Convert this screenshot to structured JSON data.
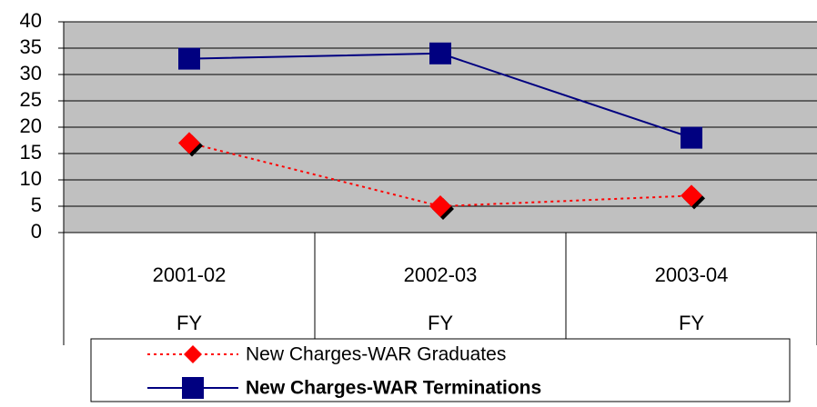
{
  "chart_data": {
    "type": "line",
    "categories": [
      [
        "2001-02",
        "FY"
      ],
      [
        "2002-03",
        "FY"
      ],
      [
        "2003-04",
        "FY"
      ]
    ],
    "series": [
      {
        "name": "New Charges-WAR Graduates",
        "color": "#ff0000",
        "values": [
          17,
          5,
          7
        ]
      },
      {
        "name": "New Charges-WAR Terminations",
        "color": "#000080",
        "values": [
          33,
          34,
          18
        ]
      }
    ],
    "ylim": [
      0,
      40
    ],
    "yticks": [
      0,
      5,
      10,
      15,
      20,
      25,
      30,
      35,
      40
    ],
    "grid": true,
    "plot_background": "#c0c0c0",
    "legend": "bottom"
  }
}
